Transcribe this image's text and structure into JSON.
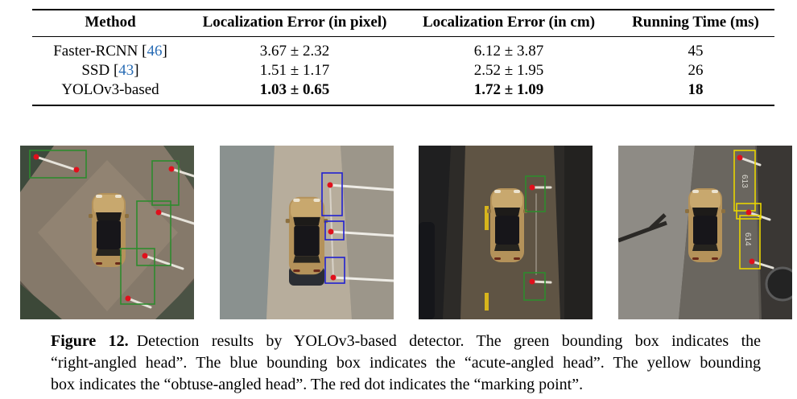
{
  "table": {
    "headers": {
      "method": "Method",
      "loc_px": "Localization Error (in pixel)",
      "loc_cm": "Localization Error (in cm)",
      "time": "Running Time (ms)"
    },
    "rows": [
      {
        "method": {
          "pre": "Faster-RCNN [",
          "cite": "46",
          "post": "]"
        },
        "loc_px": "3.67 ± 2.32",
        "loc_cm": "6.12 ± 3.87",
        "time": "45"
      },
      {
        "method": {
          "pre": "SSD [",
          "cite": "43",
          "post": "]"
        },
        "loc_px": "1.51 ± 1.17",
        "loc_cm": "2.52 ± 1.95",
        "time": "26"
      },
      {
        "method": {
          "pre": "YOLOv3-based"
        },
        "loc_px": "1.03 ± 0.65",
        "loc_cm": "1.72 ± 1.09",
        "time": "18"
      }
    ]
  },
  "figure": {
    "panel4": {
      "slot_labels": [
        "613",
        "614"
      ]
    }
  },
  "caption": {
    "label": "Figure 12.",
    "lines": [
      "Detection results by YOLOv3-based detector.  The green bounding box indicates the",
      "“right-angled head”. The blue bounding box indicates the “acute-angled head”. The yellow bounding",
      "box indicates the “obtuse-angled head”. The red dot indicates the “marking point”."
    ]
  },
  "colors": {
    "citation_link": "#2a6db5",
    "right_angled_head_box": "#2e8b2e",
    "acute_angled_head_box": "#2020d0",
    "obtuse_angled_head_box": "#e8d400",
    "marking_point_dot": "#e0101c"
  }
}
